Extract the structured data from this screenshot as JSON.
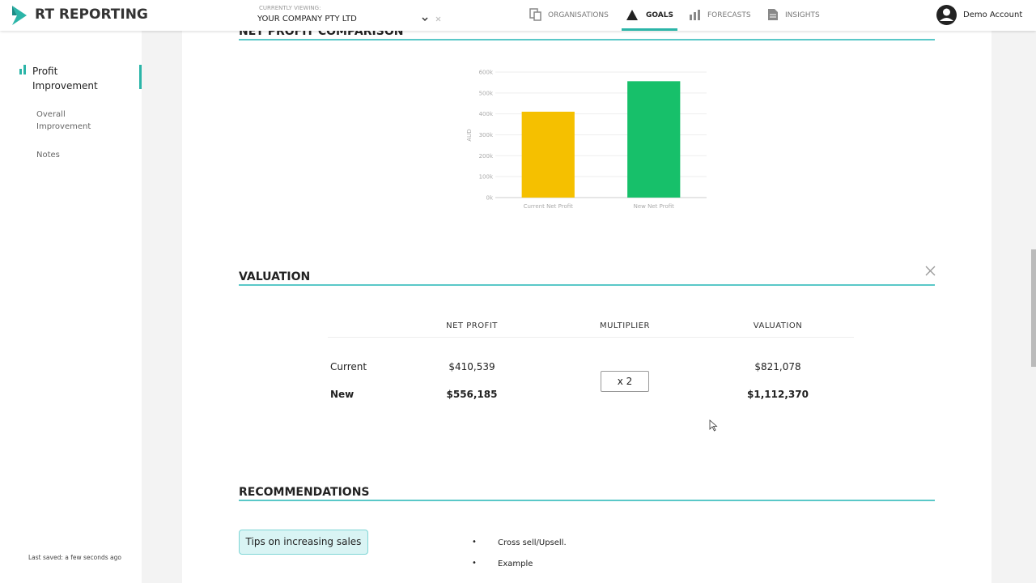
{
  "header": {
    "logo": "RT REPORTING",
    "viewing_label": "CURRENTLY VIEWING:",
    "company": "YOUR COMPANY PTY LTD",
    "nav": [
      "ORGANISATIONS",
      "GOALS",
      "FORECASTS",
      "INSIGHTS"
    ],
    "account": "Demo Account"
  },
  "sidebar": {
    "active": [
      "Profit",
      "Improvement"
    ],
    "items": [
      "Overall",
      "Improvement",
      "Notes"
    ],
    "last_saved": "Last saved: a few seconds ago"
  },
  "comparison": {
    "title": "NET PROFIT COMPARISON",
    "chart_data": {
      "type": "bar",
      "y_label": "AUD",
      "categories": [
        "Current Net Profit",
        "New Net Profit"
      ],
      "values": [
        410539,
        556185
      ],
      "colors": [
        "#f5c000",
        "#17c06a"
      ],
      "ylim": [
        0,
        600000
      ],
      "yticks": [
        {
          "value": 0,
          "label": "0k"
        },
        {
          "value": 100000,
          "label": "100k"
        },
        {
          "value": 200000,
          "label": "200k"
        },
        {
          "value": 300000,
          "label": "300k"
        },
        {
          "value": 400000,
          "label": "400k"
        },
        {
          "value": 500000,
          "label": "500k"
        },
        {
          "value": 600000,
          "label": "600k"
        }
      ],
      "grid": true
    }
  },
  "valuation": {
    "title": "VALUATION",
    "columns": [
      "NET PROFIT",
      "MULTIPLIER",
      "VALUATION"
    ],
    "rows": [
      {
        "label": "Current",
        "net_profit": "$410,539",
        "valuation": "$821,078"
      },
      {
        "label": "New",
        "net_profit": "$556,185",
        "valuation": "$1,112,370"
      }
    ],
    "multiplier": "x 2"
  },
  "recommendations": {
    "title": "RECOMMENDATIONS",
    "button": "Tips on increasing sales",
    "tips": [
      "Cross sell/Upsell.",
      "Example"
    ]
  }
}
